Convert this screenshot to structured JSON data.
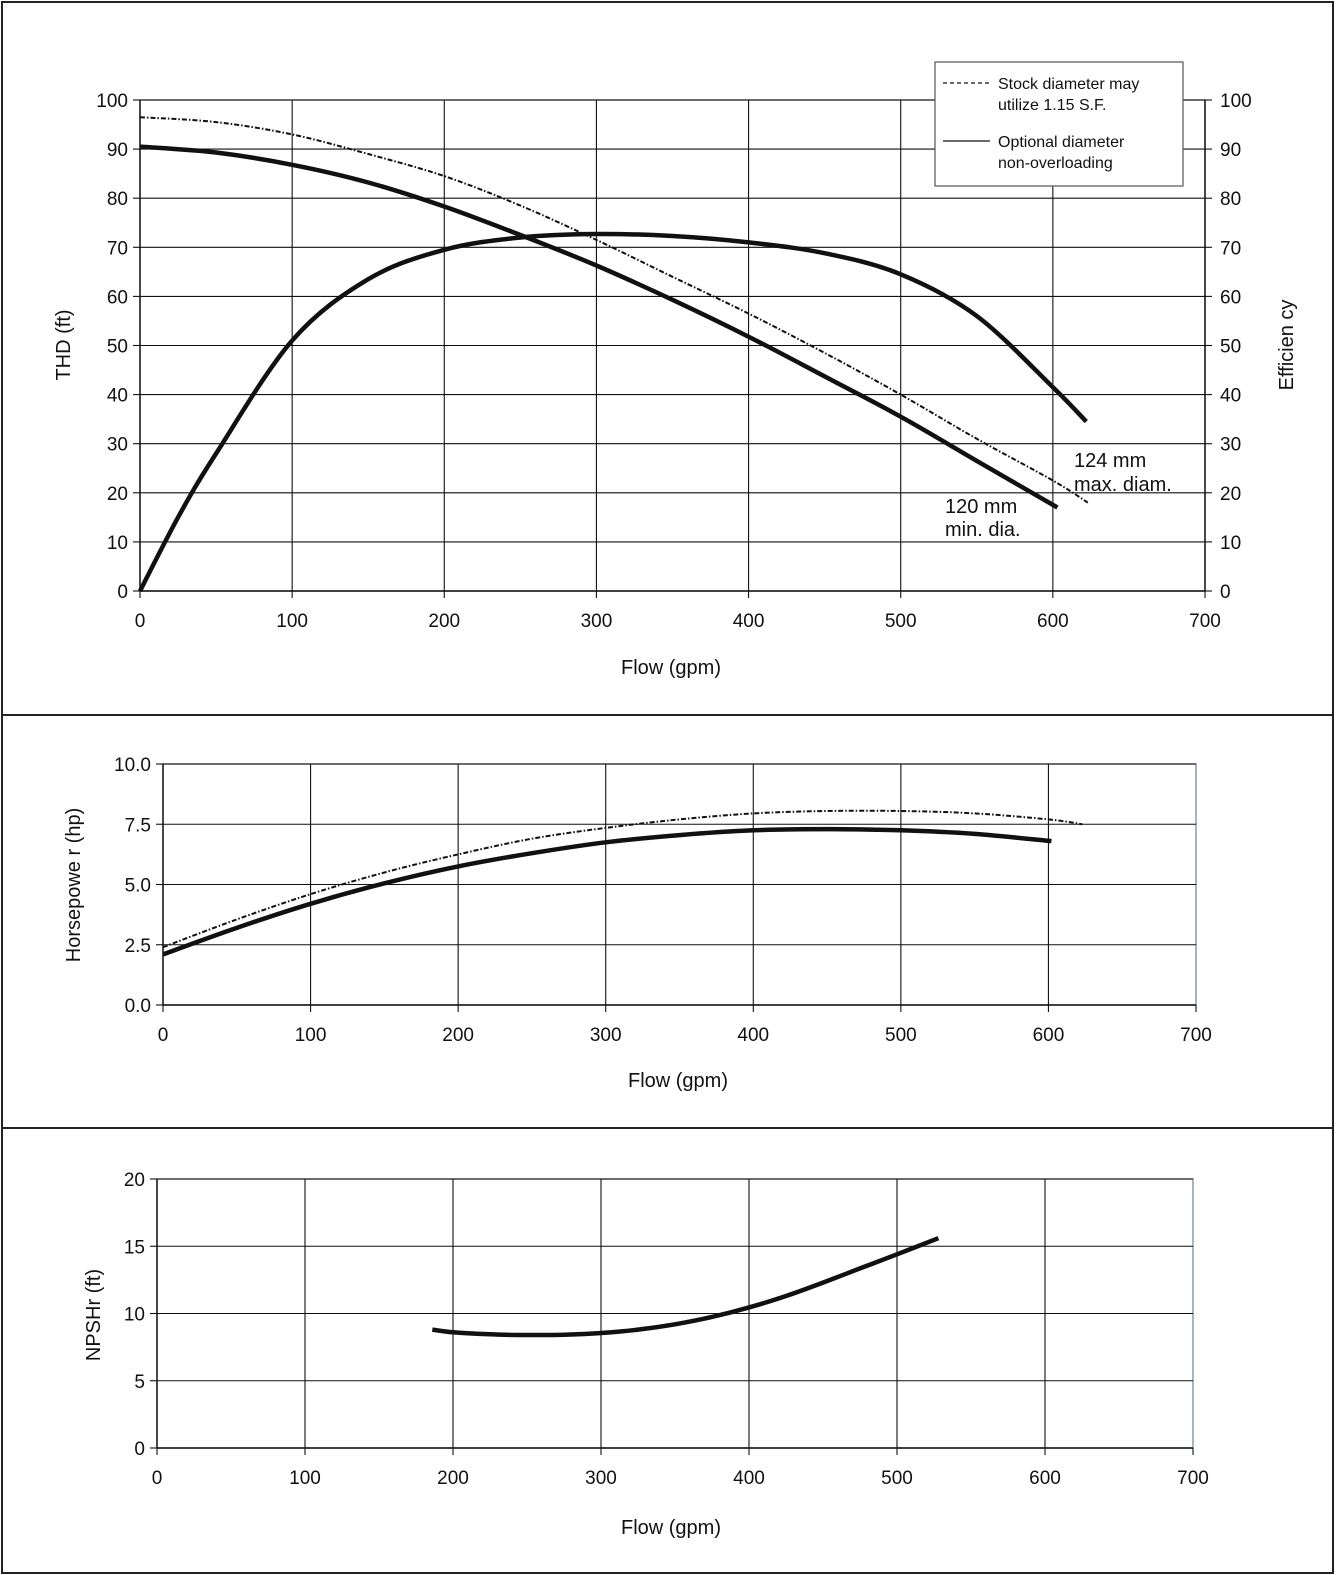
{
  "chart_data": [
    {
      "type": "line",
      "xlabel": "Flow (gpm)",
      "ylabel": "THD (ft)",
      "y2label": "Efficien cy",
      "xlim": [
        0,
        700
      ],
      "ylim": [
        0,
        100
      ],
      "y2lim": [
        0,
        100
      ],
      "xticks": [
        "0",
        "100",
        "200",
        "300",
        "400",
        "500",
        "600",
        "700"
      ],
      "yticks": [
        "0",
        "10",
        "20",
        "30",
        "40",
        "50",
        "60",
        "70",
        "80",
        "90",
        "100"
      ],
      "y2ticks": [
        "0",
        "10",
        "20",
        "30",
        "40",
        "50",
        "60",
        "70",
        "80",
        "90",
        "100"
      ],
      "grid": true,
      "legend": {
        "placement": "top-right",
        "entries": [
          {
            "label_line1": "Stock diameter may",
            "label_line2": "utilize 1.15 S.F.",
            "style": "dashed"
          },
          {
            "label_line1": "Optional diameter",
            "label_line2": "non-overloading",
            "style": "solid"
          }
        ]
      },
      "annotations": [
        {
          "line1": "124 mm",
          "line2": "max. diam."
        },
        {
          "line1": "120 mm",
          "line2": "min. dia."
        }
      ],
      "series": [
        {
          "style": "dashed",
          "x": [
            0,
            50,
            100,
            150,
            200,
            250,
            300,
            350,
            400,
            450,
            500,
            550,
            600,
            623
          ],
          "y": [
            96.5,
            95.5,
            93,
            89,
            84.5,
            78.5,
            71.5,
            64,
            56.5,
            48.5,
            40,
            31,
            22.5,
            18
          ]
        },
        {
          "style": "solid",
          "x": [
            0,
            50,
            100,
            150,
            200,
            250,
            300,
            350,
            400,
            450,
            500,
            550,
            603
          ],
          "y": [
            90.5,
            89.3,
            86.8,
            83.2,
            78.3,
            72.5,
            66.3,
            59.3,
            51.8,
            43.7,
            35.5,
            26.5,
            17
          ]
        },
        {
          "style": "solid",
          "axis": "right",
          "x": [
            0,
            25,
            50,
            100,
            150,
            200,
            250,
            300,
            350,
            400,
            450,
            500,
            550,
            600,
            622
          ],
          "y": [
            0,
            15,
            28,
            51,
            63.5,
            69.5,
            72,
            72.7,
            72.3,
            71,
            68.8,
            64.5,
            56,
            41.5,
            34.5
          ]
        }
      ]
    },
    {
      "type": "line",
      "xlabel": "Flow (gpm)",
      "ylabel": "Horsepowe r (hp)",
      "xlim": [
        0,
        700
      ],
      "ylim": [
        0,
        10
      ],
      "xticks": [
        "0",
        "100",
        "200",
        "300",
        "400",
        "500",
        "600",
        "700"
      ],
      "yticks": [
        "0.0",
        "2.5",
        "5.0",
        "7.5",
        "10.0"
      ],
      "grid": true,
      "series": [
        {
          "style": "dashed",
          "x": [
            0,
            50,
            100,
            150,
            200,
            250,
            300,
            350,
            400,
            450,
            500,
            550,
            600,
            623
          ],
          "y": [
            2.4,
            3.55,
            4.6,
            5.5,
            6.25,
            6.9,
            7.35,
            7.7,
            7.95,
            8.05,
            8.05,
            7.95,
            7.7,
            7.5
          ]
        },
        {
          "style": "solid",
          "x": [
            0,
            50,
            100,
            150,
            200,
            250,
            300,
            350,
            400,
            450,
            500,
            550,
            602
          ],
          "y": [
            2.1,
            3.2,
            4.2,
            5.05,
            5.75,
            6.3,
            6.75,
            7.05,
            7.25,
            7.3,
            7.25,
            7.1,
            6.8
          ]
        }
      ]
    },
    {
      "type": "line",
      "xlabel": "Flow (gpm)",
      "ylabel": "NPSHr (ft)",
      "xlim": [
        0,
        700
      ],
      "ylim": [
        0,
        20
      ],
      "xticks": [
        "0",
        "100",
        "200",
        "300",
        "400",
        "500",
        "600",
        "700"
      ],
      "yticks": [
        "0",
        "5",
        "10",
        "15",
        "20"
      ],
      "grid": true,
      "series": [
        {
          "style": "solid",
          "x": [
            186,
            200,
            225,
            250,
            275,
            300,
            325,
            350,
            375,
            400,
            425,
            450,
            475,
            500,
            528
          ],
          "y": [
            8.8,
            8.6,
            8.45,
            8.4,
            8.42,
            8.55,
            8.8,
            9.2,
            9.75,
            10.45,
            11.3,
            12.3,
            13.35,
            14.4,
            15.6
          ]
        }
      ]
    }
  ]
}
